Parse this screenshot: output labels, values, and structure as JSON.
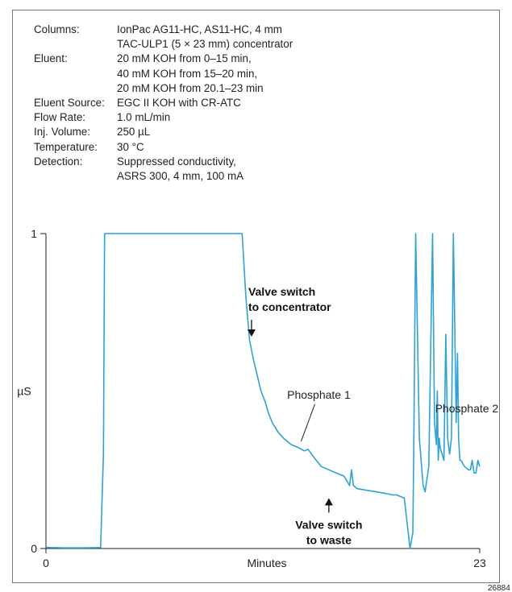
{
  "conditions": [
    {
      "label": "Columns:",
      "lines": [
        "IonPac AG11-HC, AS11-HC, 4 mm",
        "TAC-ULP1 (5 × 23 mm) concentrator"
      ]
    },
    {
      "label": "Eluent:",
      "lines": [
        "20 mM KOH from 0–15 min,",
        "40 mM KOH from 15–20 min,",
        "20 mM KOH from 20.1–23 min"
      ]
    },
    {
      "label": "Eluent Source:",
      "lines": [
        "EGC II KOH  with CR-ATC"
      ]
    },
    {
      "label": "Flow Rate:",
      "lines": [
        "1.0 mL/min"
      ]
    },
    {
      "label": "Inj. Volume:",
      "lines": [
        "250 µL"
      ]
    },
    {
      "label": "Temperature:",
      "lines": [
        "30 °C"
      ]
    },
    {
      "label": "Detection:",
      "lines": [
        "Suppressed conductivity,",
        "ASRS 300, 4 mm, 100 mA"
      ]
    }
  ],
  "chart_data": {
    "type": "line",
    "xlabel": "Minutes",
    "ylabel": "µS",
    "xlim": [
      0,
      23
    ],
    "ylim": [
      0,
      1
    ],
    "x_ticks": [
      "0",
      "23"
    ],
    "y_ticks": [
      "0",
      "1"
    ],
    "grid": false,
    "line_color": "#2aa3d8",
    "series": [
      {
        "x": [
          0,
          0.2,
          1,
          2,
          2.9,
          3.05,
          3.1,
          3.11,
          10.4,
          10.6,
          10.8,
          11.0,
          11.2,
          11.4,
          11.6,
          11.8,
          12.0,
          12.3,
          12.6,
          13.0,
          13.4,
          13.7,
          13.9,
          14.2,
          14.6,
          15.0,
          15.4,
          15.8,
          16.1,
          16.2,
          16.3,
          16.5,
          17.0,
          17.5,
          18.0,
          18.4,
          18.6,
          18.8,
          19.0,
          19.3,
          19.45,
          19.5,
          19.6,
          19.8,
          20.0,
          20.1,
          20.2,
          20.3,
          20.5,
          20.6,
          20.7,
          20.75,
          20.8,
          20.85,
          20.9,
          21.1,
          21.2,
          21.3,
          21.4,
          21.5,
          21.6,
          21.75,
          21.82,
          21.88,
          21.95,
          22.0,
          22.1,
          22.2,
          22.4,
          22.5,
          22.6,
          22.7,
          22.8,
          22.9,
          23.0
        ],
        "y": [
          0.004,
          0.003,
          0.002,
          0.002,
          0.003,
          0.3,
          0.9,
          1.0,
          1.0,
          0.8,
          0.66,
          0.6,
          0.55,
          0.5,
          0.47,
          0.43,
          0.4,
          0.37,
          0.35,
          0.33,
          0.32,
          0.31,
          0.315,
          0.29,
          0.26,
          0.25,
          0.24,
          0.23,
          0.2,
          0.25,
          0.2,
          0.19,
          0.185,
          0.18,
          0.175,
          0.17,
          0.17,
          0.165,
          0.16,
          0.0,
          0.05,
          0.3,
          1.0,
          0.35,
          0.2,
          0.18,
          0.22,
          0.26,
          1.0,
          0.4,
          0.33,
          0.5,
          0.28,
          0.35,
          0.32,
          0.28,
          0.68,
          0.35,
          0.3,
          0.35,
          1.0,
          0.4,
          0.62,
          0.35,
          0.28,
          0.28,
          0.27,
          0.26,
          0.25,
          0.25,
          0.28,
          0.24,
          0.24,
          0.28,
          0.26
        ]
      }
    ],
    "annotations": [
      {
        "text_lines": [
          "Valve switch",
          "to concentrator"
        ],
        "x": 10.9,
        "y": 0.67,
        "style": "bold",
        "arrow": "down"
      },
      {
        "text_lines": [
          "Valve switch",
          "to waste"
        ],
        "x": 15.0,
        "y": 0.16,
        "style": "bold",
        "arrow": "up"
      },
      {
        "text_lines": [
          "Phosphate 1"
        ],
        "x": 13.4,
        "y": 0.33,
        "style": "normal",
        "leader": true
      },
      {
        "text_lines": [
          "Phosphate 2"
        ],
        "x": 22.0,
        "y": 0.44,
        "style": "normal",
        "leader": false
      }
    ],
    "figure_id": "26884"
  }
}
